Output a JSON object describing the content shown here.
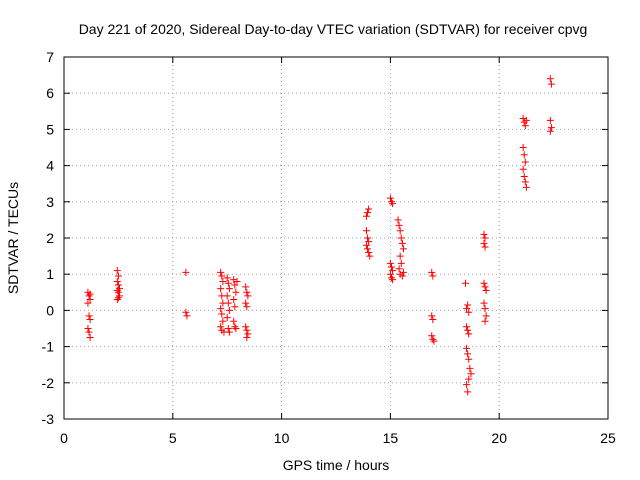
{
  "chart_data": {
    "type": "scatter",
    "title": "Day 221 of 2020, Sidereal Day-to-day VTEC variation (SDTVAR) for receiver cpvg",
    "xlabel": "GPS time / hours",
    "ylabel": "SDTVAR / TECUs",
    "xlim": [
      0,
      25
    ],
    "ylim": [
      -3,
      7
    ],
    "x_ticks": [
      0,
      5,
      10,
      15,
      20,
      25
    ],
    "y_ticks": [
      -3,
      -2,
      -1,
      0,
      1,
      2,
      3,
      4,
      5,
      6,
      7
    ],
    "grid": true,
    "marker": "+",
    "series": [
      {
        "name": "SDTVAR",
        "color": "#ff0000",
        "points": [
          [
            1.1,
            0.5
          ],
          [
            1.15,
            0.4
          ],
          [
            1.2,
            0.3
          ],
          [
            1.1,
            0.2
          ],
          [
            1.15,
            -0.15
          ],
          [
            1.2,
            -0.25
          ],
          [
            1.1,
            -0.5
          ],
          [
            1.15,
            -0.6
          ],
          [
            1.2,
            -0.75
          ],
          [
            1.2,
            0.45
          ],
          [
            2.45,
            1.1
          ],
          [
            2.5,
            0.95
          ],
          [
            2.45,
            0.8
          ],
          [
            2.5,
            0.7
          ],
          [
            2.55,
            0.6
          ],
          [
            2.45,
            0.55
          ],
          [
            2.5,
            0.5
          ],
          [
            2.55,
            0.4
          ],
          [
            2.5,
            0.35
          ],
          [
            2.45,
            0.3
          ],
          [
            5.6,
            1.05
          ],
          [
            5.6,
            -0.05
          ],
          [
            5.65,
            -0.15
          ],
          [
            7.2,
            1.05
          ],
          [
            7.25,
            0.95
          ],
          [
            7.3,
            0.8
          ],
          [
            7.2,
            0.6
          ],
          [
            7.25,
            0.4
          ],
          [
            7.3,
            0.2
          ],
          [
            7.2,
            0.05
          ],
          [
            7.25,
            -0.1
          ],
          [
            7.3,
            -0.3
          ],
          [
            7.2,
            -0.45
          ],
          [
            7.25,
            -0.55
          ],
          [
            7.35,
            -0.6
          ],
          [
            7.5,
            0.9
          ],
          [
            7.55,
            0.75
          ],
          [
            7.6,
            0.6
          ],
          [
            7.5,
            0.4
          ],
          [
            7.55,
            0.2
          ],
          [
            7.6,
            0.0
          ],
          [
            7.5,
            -0.2
          ],
          [
            7.55,
            -0.5
          ],
          [
            7.6,
            -0.6
          ],
          [
            7.8,
            0.85
          ],
          [
            7.85,
            0.7
          ],
          [
            7.9,
            0.5
          ],
          [
            7.8,
            0.3
          ],
          [
            7.85,
            0.1
          ],
          [
            7.8,
            -0.3
          ],
          [
            7.85,
            -0.45
          ],
          [
            7.9,
            -0.5
          ],
          [
            7.95,
            0.8
          ],
          [
            8.35,
            0.65
          ],
          [
            8.4,
            0.5
          ],
          [
            8.45,
            0.4
          ],
          [
            8.35,
            0.2
          ],
          [
            8.4,
            0.1
          ],
          [
            8.35,
            -0.45
          ],
          [
            8.4,
            -0.55
          ],
          [
            8.45,
            -0.65
          ],
          [
            8.4,
            -0.75
          ],
          [
            13.9,
            2.6
          ],
          [
            13.95,
            2.7
          ],
          [
            14.0,
            2.8
          ],
          [
            13.9,
            2.2
          ],
          [
            13.95,
            2.0
          ],
          [
            14.0,
            1.9
          ],
          [
            13.9,
            1.8
          ],
          [
            13.95,
            1.7
          ],
          [
            14.0,
            1.6
          ],
          [
            14.05,
            1.5
          ],
          [
            15.0,
            3.1
          ],
          [
            15.05,
            3.0
          ],
          [
            15.1,
            2.95
          ],
          [
            15.0,
            1.3
          ],
          [
            15.05,
            1.2
          ],
          [
            15.1,
            1.1
          ],
          [
            15.0,
            1.0
          ],
          [
            15.05,
            0.9
          ],
          [
            15.1,
            0.85
          ],
          [
            15.35,
            2.5
          ],
          [
            15.4,
            2.35
          ],
          [
            15.45,
            2.2
          ],
          [
            15.5,
            2.0
          ],
          [
            15.55,
            1.85
          ],
          [
            15.6,
            1.7
          ],
          [
            15.45,
            1.5
          ],
          [
            15.5,
            1.3
          ],
          [
            15.4,
            1.15
          ],
          [
            15.45,
            1.0
          ],
          [
            15.55,
            0.95
          ],
          [
            15.6,
            1.05
          ],
          [
            16.9,
            1.05
          ],
          [
            16.95,
            0.95
          ],
          [
            16.9,
            -0.15
          ],
          [
            16.95,
            -0.25
          ],
          [
            16.9,
            -0.7
          ],
          [
            16.95,
            -0.8
          ],
          [
            17.0,
            -0.85
          ],
          [
            18.45,
            0.75
          ],
          [
            18.55,
            0.15
          ],
          [
            18.5,
            0.05
          ],
          [
            18.6,
            -0.05
          ],
          [
            18.5,
            -0.45
          ],
          [
            18.55,
            -0.55
          ],
          [
            18.6,
            -0.65
          ],
          [
            18.5,
            -1.05
          ],
          [
            18.55,
            -1.2
          ],
          [
            18.6,
            -1.35
          ],
          [
            18.65,
            -1.6
          ],
          [
            18.7,
            -1.75
          ],
          [
            18.6,
            -1.9
          ],
          [
            18.5,
            -2.05
          ],
          [
            18.55,
            -2.25
          ],
          [
            19.3,
            2.1
          ],
          [
            19.35,
            2.0
          ],
          [
            19.3,
            1.85
          ],
          [
            19.35,
            1.75
          ],
          [
            19.3,
            0.75
          ],
          [
            19.35,
            0.65
          ],
          [
            19.4,
            0.55
          ],
          [
            19.3,
            0.2
          ],
          [
            19.35,
            0.05
          ],
          [
            19.4,
            -0.15
          ],
          [
            19.35,
            -0.3
          ],
          [
            21.1,
            5.3
          ],
          [
            21.15,
            5.2
          ],
          [
            21.2,
            5.1
          ],
          [
            21.25,
            5.25
          ],
          [
            21.1,
            4.5
          ],
          [
            21.15,
            4.3
          ],
          [
            21.2,
            4.1
          ],
          [
            21.1,
            3.9
          ],
          [
            21.15,
            3.7
          ],
          [
            21.2,
            3.55
          ],
          [
            21.25,
            3.4
          ],
          [
            22.35,
            6.4
          ],
          [
            22.4,
            6.25
          ],
          [
            22.35,
            5.25
          ],
          [
            22.4,
            5.05
          ],
          [
            22.35,
            4.95
          ]
        ]
      }
    ]
  }
}
